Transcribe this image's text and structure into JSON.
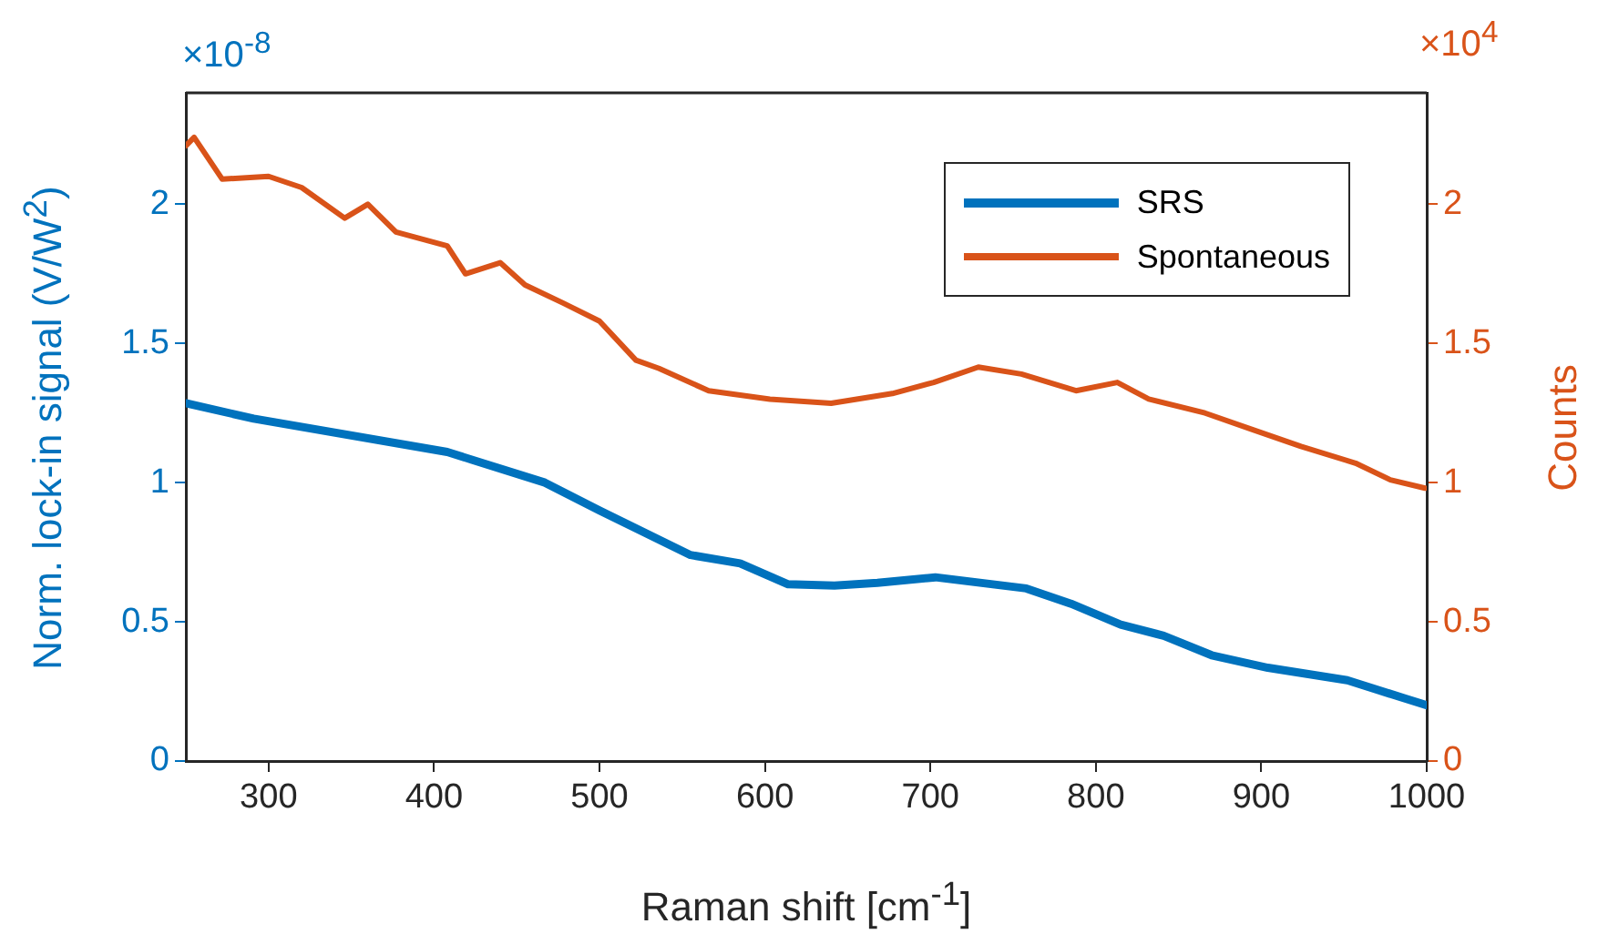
{
  "chart_data": {
    "type": "line",
    "xlabel": "Raman shift [cm$^{-1}$]",
    "ylabel": "Norm. lock-in signal (V/W$^{2}$)",
    "y2label": "Counts",
    "annotations": [
      "×10$^{-8}$",
      "×10$^{4}$"
    ],
    "xlim": [
      250,
      1000
    ],
    "xticks": [
      300,
      400,
      500,
      600,
      700,
      800,
      900,
      1000
    ],
    "ylim": [
      0,
      2.4
    ],
    "yticks": [
      0,
      0.5,
      1,
      1.5,
      2
    ],
    "y2lim": [
      0,
      2.4
    ],
    "y2ticks": [
      0,
      0.5,
      1,
      1.5,
      2
    ],
    "grid": false,
    "legend": "top right",
    "marker": "none",
    "line_style": "solid",
    "series": [
      {
        "name": "SRS",
        "color": "#0072bd",
        "x": [
          250,
          291,
          408,
          467,
          500,
          555,
          585,
          614,
          642,
          668,
          703,
          758,
          785,
          815,
          841,
          870,
          904,
          952,
          1000
        ],
        "values": [
          1.285,
          1.23,
          1.11,
          1.0,
          0.9,
          0.74,
          0.71,
          0.635,
          0.63,
          0.64,
          0.66,
          0.62,
          0.565,
          0.49,
          0.45,
          0.38,
          0.335,
          0.29,
          0.2
        ]
      },
      {
        "name": "Spontaneous",
        "color": "#d95319",
        "axis": "y2",
        "x": [
          250,
          255,
          272,
          300,
          320,
          346,
          360,
          377,
          408,
          419,
          440,
          455,
          478,
          500,
          522,
          536,
          566,
          603,
          640,
          677,
          702,
          729,
          755,
          788,
          813,
          832,
          866,
          895,
          924,
          957,
          978,
          999
        ],
        "values": [
          2.21,
          2.24,
          2.09,
          2.1,
          2.06,
          1.95,
          2.0,
          1.9,
          1.85,
          1.75,
          1.79,
          1.71,
          1.645,
          1.58,
          1.44,
          1.41,
          1.33,
          1.3,
          1.285,
          1.32,
          1.36,
          1.415,
          1.39,
          1.33,
          1.36,
          1.3,
          1.25,
          1.19,
          1.13,
          1.07,
          1.01,
          0.98
        ]
      }
    ]
  }
}
